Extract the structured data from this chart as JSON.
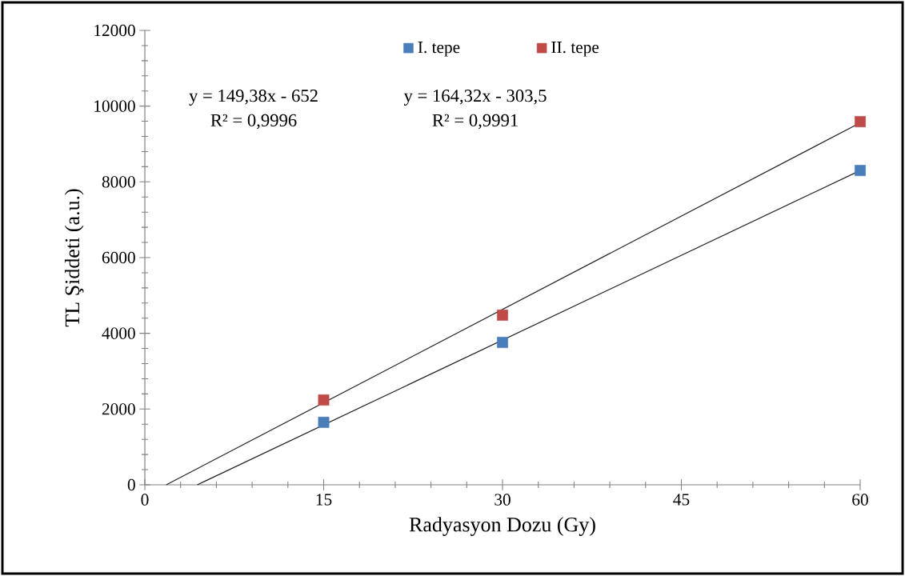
{
  "chart_data": {
    "type": "scatter",
    "xlabel": "Radyasyon Dozu (Gy)",
    "ylabel": "TL Şiddeti (a.u.)",
    "x": [
      15,
      30,
      60
    ],
    "series": [
      {
        "name": "I. tepe",
        "color": "#4a7ebb",
        "values": [
          1650,
          3760,
          8300
        ]
      },
      {
        "name": "II. tepe",
        "color": "#be4b48",
        "values": [
          2240,
          4480,
          9590
        ]
      },
      {
        "type": "line",
        "color": "#222222",
        "marker": "none",
        "x": [
          4.4,
          60
        ],
        "values": [
          0,
          8300
        ]
      },
      {
        "type": "line",
        "color": "#222222",
        "marker": "none",
        "x": [
          1.8,
          60
        ],
        "values": [
          0,
          9560
        ]
      }
    ],
    "xlim": [
      0,
      60
    ],
    "xticks": [
      0,
      15,
      30,
      45,
      60
    ],
    "ylim": [
      0,
      12000
    ],
    "yticks": [
      0,
      2000,
      4000,
      6000,
      8000,
      10000,
      12000
    ],
    "marker": "square",
    "legend": "top",
    "grid": false,
    "annotations": [
      "y = 149,38x - 652",
      "R² = 0,9996",
      "y = 164,32x - 303,5",
      "R² = 0,9991"
    ]
  }
}
